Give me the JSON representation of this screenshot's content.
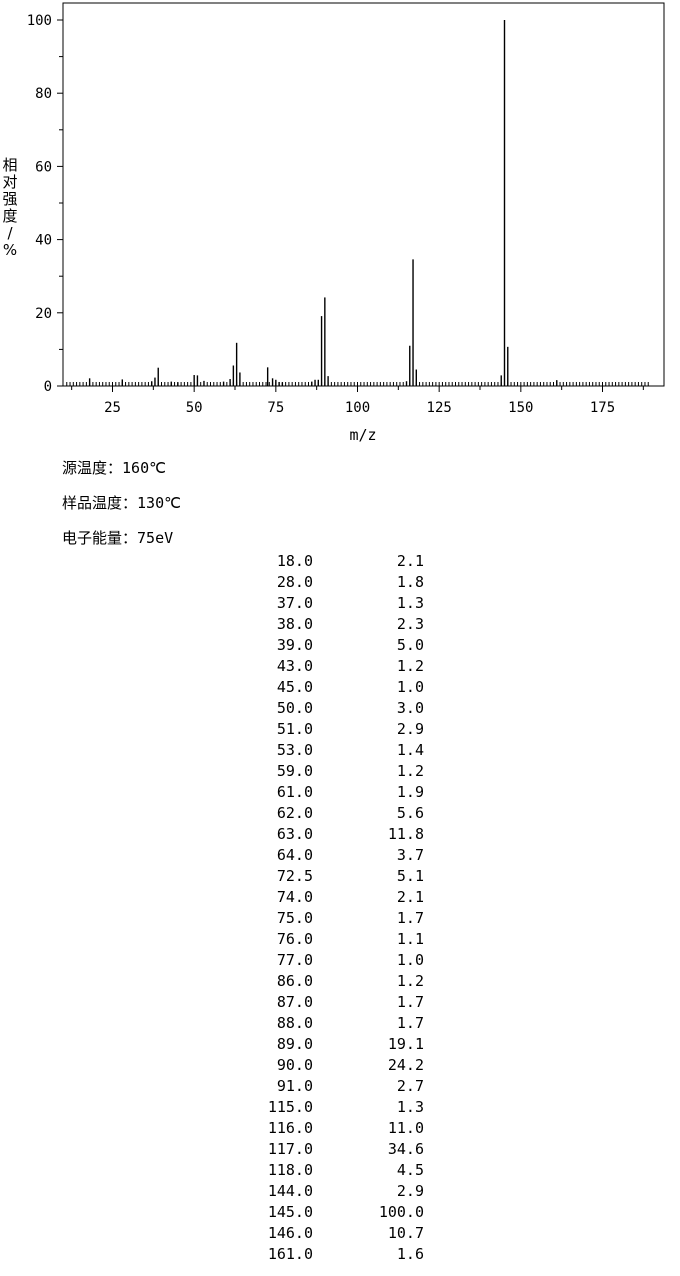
{
  "chart_data": {
    "type": "bar",
    "xlabel": "m/z",
    "ylabel": "相对强度/%",
    "xlim": [
      10,
      190
    ],
    "ylim": [
      0,
      100
    ],
    "x_ticks": [
      25,
      50,
      75,
      100,
      125,
      150,
      175
    ],
    "y_ticks": [
      0,
      20,
      40,
      60,
      80,
      100
    ],
    "grid": false,
    "x": [
      18.0,
      28.0,
      37.0,
      38.0,
      39.0,
      43.0,
      45.0,
      50.0,
      51.0,
      53.0,
      59.0,
      61.0,
      62.0,
      63.0,
      64.0,
      72.5,
      74.0,
      75.0,
      76.0,
      77.0,
      86.0,
      87.0,
      88.0,
      89.0,
      90.0,
      91.0,
      115.0,
      116.0,
      117.0,
      118.0,
      144.0,
      145.0,
      146.0,
      161.0
    ],
    "values": [
      2.1,
      1.8,
      1.3,
      2.3,
      5.0,
      1.2,
      1.0,
      3.0,
      2.9,
      1.4,
      1.2,
      1.9,
      5.6,
      11.8,
      3.7,
      5.1,
      2.1,
      1.7,
      1.1,
      1.0,
      1.2,
      1.7,
      1.7,
      19.1,
      24.2,
      2.7,
      1.3,
      11.0,
      34.6,
      4.5,
      2.9,
      100.0,
      10.7,
      1.6
    ]
  },
  "conditions": [
    {
      "label": "源温度：",
      "value": "160℃"
    },
    {
      "label": "样品温度：",
      "value": "130℃"
    },
    {
      "label": "电子能量：",
      "value": "75eV"
    }
  ],
  "peaks": [
    {
      "mz": "18.0",
      "abundance": "2.1"
    },
    {
      "mz": "28.0",
      "abundance": "1.8"
    },
    {
      "mz": "37.0",
      "abundance": "1.3"
    },
    {
      "mz": "38.0",
      "abundance": "2.3"
    },
    {
      "mz": "39.0",
      "abundance": "5.0"
    },
    {
      "mz": "43.0",
      "abundance": "1.2"
    },
    {
      "mz": "45.0",
      "abundance": "1.0"
    },
    {
      "mz": "50.0",
      "abundance": "3.0"
    },
    {
      "mz": "51.0",
      "abundance": "2.9"
    },
    {
      "mz": "53.0",
      "abundance": "1.4"
    },
    {
      "mz": "59.0",
      "abundance": "1.2"
    },
    {
      "mz": "61.0",
      "abundance": "1.9"
    },
    {
      "mz": "62.0",
      "abundance": "5.6"
    },
    {
      "mz": "63.0",
      "abundance": "11.8"
    },
    {
      "mz": "64.0",
      "abundance": "3.7"
    },
    {
      "mz": "72.5",
      "abundance": "5.1"
    },
    {
      "mz": "74.0",
      "abundance": "2.1"
    },
    {
      "mz": "75.0",
      "abundance": "1.7"
    },
    {
      "mz": "76.0",
      "abundance": "1.1"
    },
    {
      "mz": "77.0",
      "abundance": "1.0"
    },
    {
      "mz": "86.0",
      "abundance": "1.2"
    },
    {
      "mz": "87.0",
      "abundance": "1.7"
    },
    {
      "mz": "88.0",
      "abundance": "1.7"
    },
    {
      "mz": "89.0",
      "abundance": "19.1"
    },
    {
      "mz": "90.0",
      "abundance": "24.2"
    },
    {
      "mz": "91.0",
      "abundance": "2.7"
    },
    {
      "mz": "115.0",
      "abundance": "1.3"
    },
    {
      "mz": "116.0",
      "abundance": "11.0"
    },
    {
      "mz": "117.0",
      "abundance": "34.6"
    },
    {
      "mz": "118.0",
      "abundance": "4.5"
    },
    {
      "mz": "144.0",
      "abundance": "2.9"
    },
    {
      "mz": "145.0",
      "abundance": "100.0"
    },
    {
      "mz": "146.0",
      "abundance": "10.7"
    },
    {
      "mz": "161.0",
      "abundance": "1.6"
    }
  ]
}
